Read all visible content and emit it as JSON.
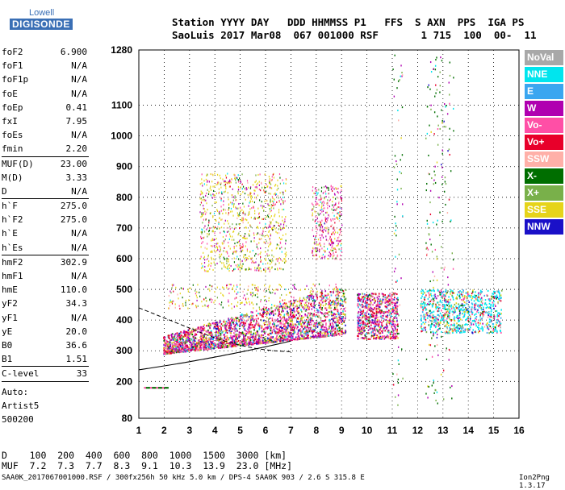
{
  "logo": {
    "top": "Lowell",
    "bottom": "DIGISONDE"
  },
  "header": {
    "line1": "Station YYYY DAY   DDD HHMMSS P1   FFS  S AXN  PPS  IGA PS",
    "line2": "SaoLuis 2017 Mar08  067 001000 RSF       1 715  100  00-  11"
  },
  "params": [
    {
      "name": "foF2",
      "value": "6.900"
    },
    {
      "name": "foF1",
      "value": "N/A"
    },
    {
      "name": "foF1p",
      "value": "N/A"
    },
    {
      "name": "foE",
      "value": "N/A"
    },
    {
      "name": "foEp",
      "value": "0.41"
    },
    {
      "name": "fxI",
      "value": "7.95"
    },
    {
      "name": "foEs",
      "value": "N/A"
    },
    {
      "name": "fmin",
      "value": "2.20"
    },
    {
      "sep": true
    },
    {
      "name": "MUF(D)",
      "value": "23.00"
    },
    {
      "name": "M(D)",
      "value": "3.33"
    },
    {
      "name": "D",
      "value": "N/A"
    },
    {
      "sep": true
    },
    {
      "name": "h`F",
      "value": "275.0"
    },
    {
      "name": "h`F2",
      "value": "275.0"
    },
    {
      "name": "h`E",
      "value": "N/A"
    },
    {
      "name": "h`Es",
      "value": "N/A"
    },
    {
      "sep": true
    },
    {
      "name": "hmF2",
      "value": "302.9"
    },
    {
      "name": "hmF1",
      "value": "N/A"
    },
    {
      "name": "hmE",
      "value": "110.0"
    },
    {
      "name": "yF2",
      "value": "34.3"
    },
    {
      "name": "yF1",
      "value": "N/A"
    },
    {
      "name": "yE",
      "value": "20.0"
    },
    {
      "name": "B0",
      "value": "36.6"
    },
    {
      "name": "B1",
      "value": "1.51"
    },
    {
      "sep": true
    },
    {
      "name": "C-level",
      "value": "33"
    },
    {
      "sep": true
    }
  ],
  "auto": {
    "line1": "Auto:",
    "line2": "Artist5",
    "line3": "500200"
  },
  "legend": [
    {
      "label": "NoVal",
      "color": "#a8a8a8"
    },
    {
      "label": "NNE",
      "color": "#00e5ee"
    },
    {
      "label": "E",
      "color": "#3aa6f0"
    },
    {
      "label": "W",
      "color": "#b000b0"
    },
    {
      "label": "Vo-",
      "color": "#ff4fa6"
    },
    {
      "label": "Vo+",
      "color": "#e8002a"
    },
    {
      "label": "SSW",
      "color": "#ffb0a8"
    },
    {
      "label": "X-",
      "color": "#006e00"
    },
    {
      "label": "X+",
      "color": "#79b04a"
    },
    {
      "label": "SSE",
      "color": "#e6d41a"
    },
    {
      "label": "NNW",
      "color": "#1a10c8"
    }
  ],
  "chart_data": {
    "type": "scatter",
    "x": [
      1,
      2,
      3,
      4,
      5,
      6,
      7,
      8,
      9,
      10,
      11,
      12,
      13,
      14,
      15,
      16
    ],
    "y_ticks": [
      80,
      200,
      300,
      400,
      500,
      600,
      700,
      800,
      900,
      1000,
      1100,
      1280
    ],
    "xlim": [
      1,
      16
    ],
    "ylim": [
      80,
      1280
    ],
    "grid": true,
    "legend_position": "right"
  },
  "table": {
    "row1": "D    100  200  400  600  800  1000  1500  3000 [km]",
    "row2": "MUF  7.2  7.3  7.7  8.3  9.1  10.3  13.9  23.0 [MHz]"
  },
  "footer": "SAA0K_2017067001000.RSF / 300fx256h 50 kHz 5.0 km / DPS-4 SAA0K 903 / 2.6 S 315.8 E",
  "version": "Ion2Png 1.3.17"
}
